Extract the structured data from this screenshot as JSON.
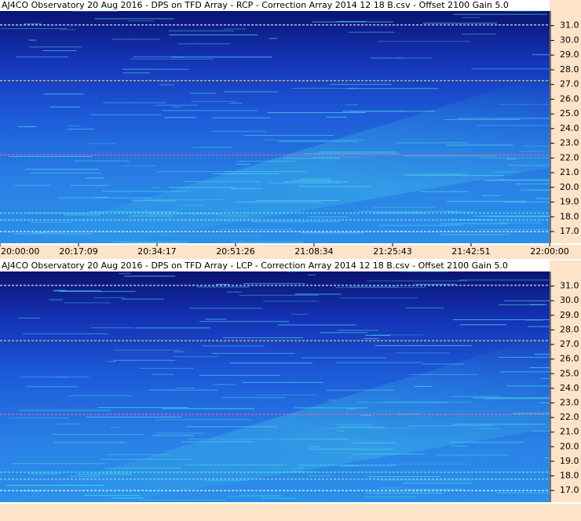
{
  "chart_data": [
    {
      "type": "spectrogram",
      "title": "AJ4CO Observatory 20 Aug 2016  -  DPS on TFD Array  -  RCP  -  Correction Array 2014 12 18 B.csv  -  Offset 2100  Gain 5.0",
      "ylim": [
        16.2,
        32.0
      ],
      "yticks": [
        {
          "value": 31,
          "label": "31.0"
        },
        {
          "value": 30,
          "label": "30.0"
        },
        {
          "value": 29,
          "label": "29.0"
        },
        {
          "value": 28,
          "label": "28.0"
        },
        {
          "value": 27,
          "label": "27.0"
        },
        {
          "value": 26,
          "label": "26.0"
        },
        {
          "value": 25,
          "label": "25.0"
        },
        {
          "value": 24,
          "label": "24.0"
        },
        {
          "value": 23,
          "label": "23.0"
        },
        {
          "value": 22,
          "label": "22.0"
        },
        {
          "value": 21,
          "label": "21.0"
        },
        {
          "value": 20,
          "label": "20.0"
        },
        {
          "value": 19,
          "label": "19.0"
        },
        {
          "value": 18,
          "label": "18.0"
        },
        {
          "value": 17,
          "label": "17.0"
        }
      ],
      "xlim": [
        "20:00:00",
        "22:00:00"
      ],
      "xticks": [
        "20:00:00",
        "20:17:09",
        "20:34:17",
        "20:51:26",
        "21:08:34",
        "21:25:43",
        "21:42:51",
        "22:00:00"
      ]
    },
    {
      "type": "spectrogram",
      "title": "AJ4CO Observatory 20 Aug 2016  -  DPS on TFD Array  -  LCP  -  Correction Array 2014 12 18 B.csv  -  Offset 2100  Gain 5.0",
      "ylim": [
        16.2,
        32.0
      ],
      "yticks": [
        {
          "value": 31,
          "label": "31.0"
        },
        {
          "value": 30,
          "label": "30.0"
        },
        {
          "value": 29,
          "label": "29.0"
        },
        {
          "value": 28,
          "label": "28.0"
        },
        {
          "value": 27,
          "label": "27.0"
        },
        {
          "value": 26,
          "label": "26.0"
        },
        {
          "value": 25,
          "label": "25.0"
        },
        {
          "value": 24,
          "label": "24.0"
        },
        {
          "value": 23,
          "label": "23.0"
        },
        {
          "value": 22,
          "label": "22.0"
        },
        {
          "value": 21,
          "label": "21.0"
        },
        {
          "value": 20,
          "label": "20.0"
        },
        {
          "value": 19,
          "label": "19.0"
        },
        {
          "value": 18,
          "label": "18.0"
        },
        {
          "value": 17,
          "label": "17.0"
        }
      ]
    }
  ]
}
